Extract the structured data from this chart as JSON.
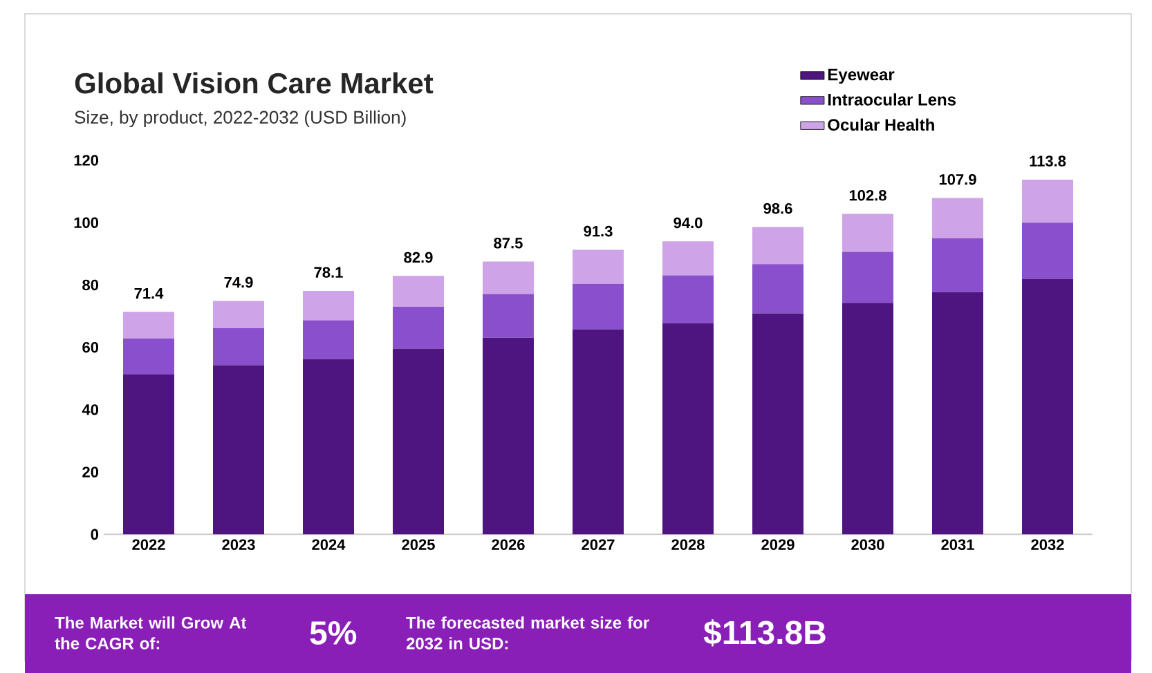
{
  "chart_data": {
    "type": "bar",
    "stacked": true,
    "title": "Global Vision Care Market",
    "subtitle": "Size, by product, 2022-2032 (USD Billion)",
    "categories": [
      "2022",
      "2023",
      "2024",
      "2025",
      "2026",
      "2027",
      "2028",
      "2029",
      "2030",
      "2031",
      "2032"
    ],
    "series": [
      {
        "name": "Eyewear",
        "color": "#4e1580",
        "values": [
          51.4,
          54.3,
          56.2,
          59.6,
          63.1,
          65.8,
          67.8,
          70.9,
          74.3,
          77.7,
          82.0
        ]
      },
      {
        "name": "Intraocular Lens",
        "color": "#8a4fcc",
        "values": [
          11.4,
          11.9,
          12.5,
          13.4,
          14.0,
          14.6,
          15.3,
          15.8,
          16.3,
          17.3,
          18.0
        ]
      },
      {
        "name": "Ocular Health",
        "color": "#cfa3e8",
        "values": [
          8.6,
          8.7,
          9.4,
          9.9,
          10.4,
          10.9,
          10.9,
          11.9,
          12.2,
          12.9,
          13.8
        ]
      }
    ],
    "totals": [
      "71.4",
      "74.9",
      "78.1",
      "82.9",
      "87.5",
      "91.3",
      "94.0",
      "98.6",
      "102.8",
      "107.9",
      "113.8"
    ],
    "ylim": [
      0,
      120
    ],
    "yticks": [
      0,
      20,
      40,
      60,
      80,
      100,
      120
    ],
    "grid": false,
    "legend": "top right",
    "annotations": [
      "The Market will Grow At the CAGR of:",
      "5%",
      "The forecasted market size for 2032 in USD:",
      "$113.8B"
    ]
  }
}
